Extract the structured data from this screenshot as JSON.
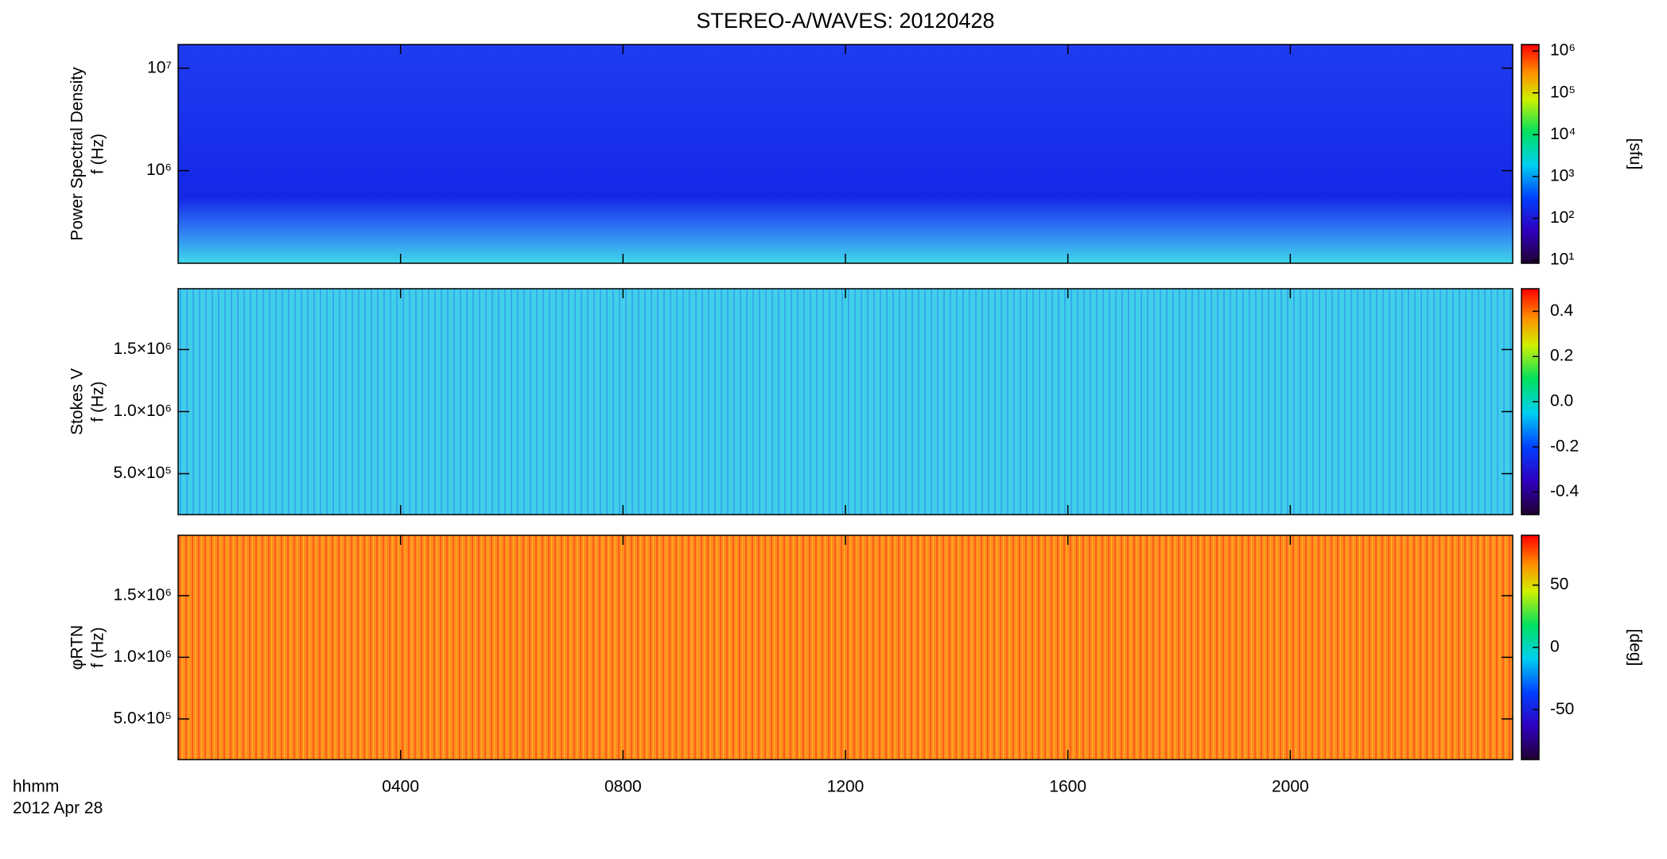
{
  "title": "STEREO-A/WAVES: 20120428",
  "x_label": "hhmm",
  "date": "2012 Apr 28",
  "xlim": [
    0,
    24
  ],
  "xticks": [
    {
      "value": 4,
      "label": "0400"
    },
    {
      "value": 8,
      "label": "0800"
    },
    {
      "value": 12,
      "label": "1200"
    },
    {
      "value": 16,
      "label": "1600"
    },
    {
      "value": 20,
      "label": "2000"
    }
  ],
  "chart_data": [
    {
      "type": "heatmap",
      "ylabel": "Power Spectral Density",
      "ylabel2": "f (Hz)",
      "log": true,
      "ylim": [
        125000,
        17000000
      ],
      "yticks": [
        {
          "value": 1000000,
          "label": "10⁶"
        },
        {
          "value": 10000000,
          "label": "10⁷"
        }
      ],
      "colorbar": {
        "label": "[sfu]",
        "log": true,
        "lim": [
          8.4,
          1430000
        ],
        "ticks": [
          {
            "value": 10,
            "label": "10¹"
          },
          {
            "value": 100,
            "label": "10²"
          },
          {
            "value": 1000,
            "label": "10³"
          },
          {
            "value": 10000,
            "label": "10⁴"
          },
          {
            "value": 100000,
            "label": "10⁵"
          },
          {
            "value": 1000000,
            "label": "10⁶"
          }
        ]
      }
    },
    {
      "type": "heatmap",
      "ylabel": "Stokes V",
      "ylabel2": "f (Hz)",
      "log": false,
      "ylim": [
        170000,
        1990000
      ],
      "yticks": [
        {
          "value": 500000,
          "label": "5.0×10⁵"
        },
        {
          "value": 1000000,
          "label": "1.0×10⁶"
        },
        {
          "value": 1500000,
          "label": "1.5×10⁶"
        }
      ],
      "colorbar": {
        "log": false,
        "lim": [
          -0.5,
          0.5
        ],
        "ticks": [
          -0.4,
          -0.2,
          {
            "value": 0,
            "label": "0.0"
          },
          0.2,
          0.4
        ]
      }
    },
    {
      "type": "heatmap",
      "ylabel": "φRTN",
      "ylabel2": "f (Hz)",
      "log": false,
      "ylim": [
        170000,
        1990000
      ],
      "yticks": [
        {
          "value": 500000,
          "label": "5.0×10⁵"
        },
        {
          "value": 1000000,
          "label": "1.0×10⁶"
        },
        {
          "value": 1500000,
          "label": "1.5×10⁶"
        }
      ],
      "colorbar": {
        "label": "[deg]",
        "log": false,
        "lim": [
          -90,
          90
        ],
        "ticks": [
          -50,
          0,
          50
        ]
      }
    }
  ]
}
